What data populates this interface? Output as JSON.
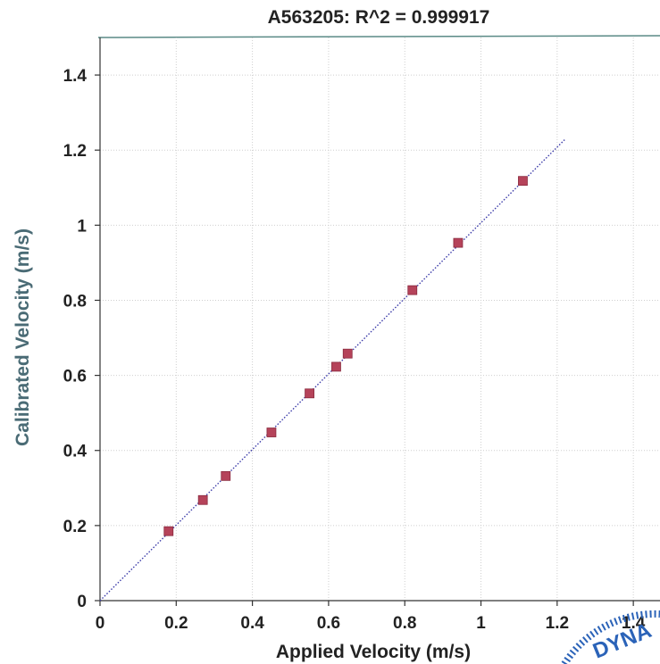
{
  "chart_data": {
    "type": "scatter",
    "title": "A563205: R^2 = 0.999917",
    "xlabel": "Applied Velocity (m/s)",
    "ylabel": "Calibrated Velocity (m/s)",
    "xlim": [
      0,
      1.47
    ],
    "ylim": [
      0,
      1.5
    ],
    "xticks": [
      "0",
      "0.2",
      "0.4",
      "0.6",
      "0.8",
      "1",
      "1.2",
      "1.4"
    ],
    "xtick_values": [
      0,
      0.2,
      0.4,
      0.6,
      0.8,
      1.0,
      1.2,
      1.4
    ],
    "yticks": [
      "0",
      "0.2",
      "0.4",
      "0.6",
      "0.8",
      "1",
      "1.2",
      "1.4"
    ],
    "ytick_values": [
      0,
      0.2,
      0.4,
      0.6,
      0.8,
      1.0,
      1.2,
      1.4
    ],
    "grid": true,
    "series": [
      {
        "points": [
          {
            "x": 0.18,
            "y": 0.185
          },
          {
            "x": 0.27,
            "y": 0.268
          },
          {
            "x": 0.33,
            "y": 0.332
          },
          {
            "x": 0.45,
            "y": 0.448
          },
          {
            "x": 0.55,
            "y": 0.552
          },
          {
            "x": 0.62,
            "y": 0.623
          },
          {
            "x": 0.65,
            "y": 0.658
          },
          {
            "x": 0.82,
            "y": 0.827
          },
          {
            "x": 0.94,
            "y": 0.953
          },
          {
            "x": 1.11,
            "y": 1.118
          }
        ]
      }
    ],
    "fit_line": {
      "x": [
        0,
        1.22
      ],
      "y": [
        0,
        1.228
      ]
    },
    "colors": {
      "marker": "#b5435a",
      "marker_edge": "#8a2a3e",
      "fit_line": "#3a3aa8",
      "ylabel": "#4a6b75",
      "stamp": "#2b63b8",
      "top_border": "#5a8a86"
    }
  },
  "stamp_text": "DYNA"
}
